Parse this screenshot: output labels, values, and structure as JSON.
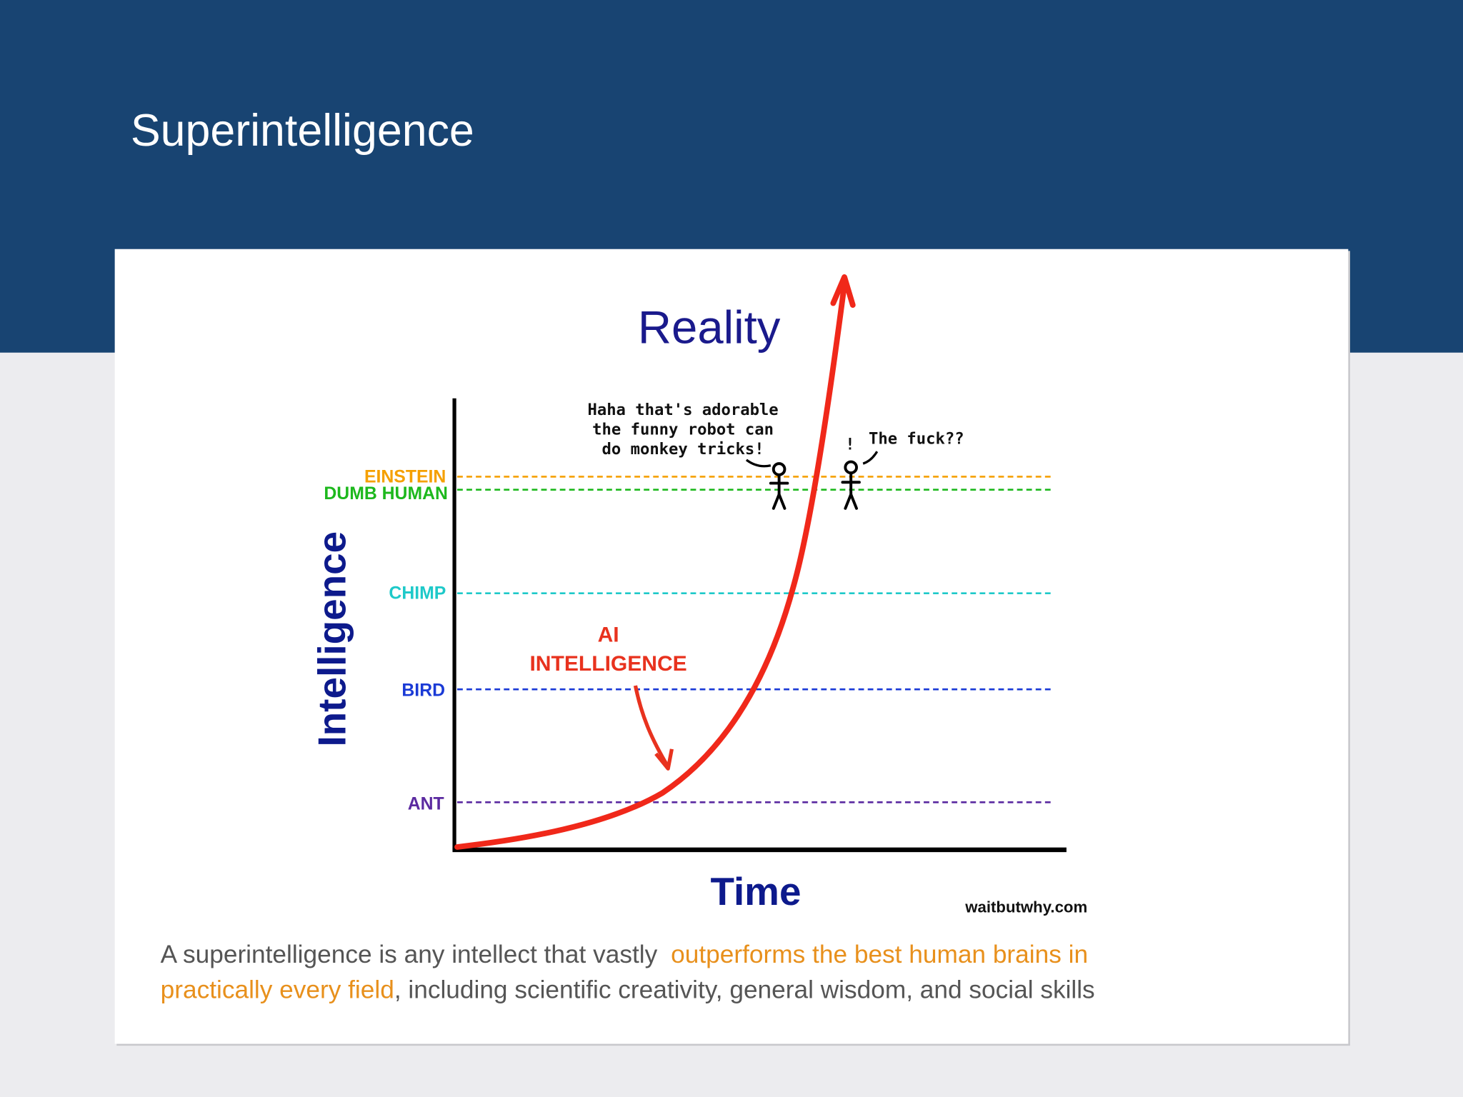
{
  "header": {
    "title": "Superintelligence"
  },
  "figure": {
    "title": "Reality",
    "y_axis_label": "Intelligence",
    "x_axis_label": "Time",
    "levels": [
      "EINSTEIN",
      "DUMB HUMAN",
      "CHIMP",
      "BIRD",
      "ANT"
    ],
    "curve_label": [
      "AI",
      "INTELLIGENCE"
    ],
    "speech_left": [
      "Haha that's adorable",
      "the funny robot can",
      "do monkey tricks!"
    ],
    "exclamation": "!",
    "speech_right": "The fuck??",
    "credit": "waitbutwhy.com"
  },
  "caption": {
    "text_start": "A superintelligence is any intellect that vastly",
    "highlight": [
      "outperforms the best human brains in",
      "practically every field"
    ],
    "text_end": ", including scientific creativity, general wisdom, and social skills"
  }
}
